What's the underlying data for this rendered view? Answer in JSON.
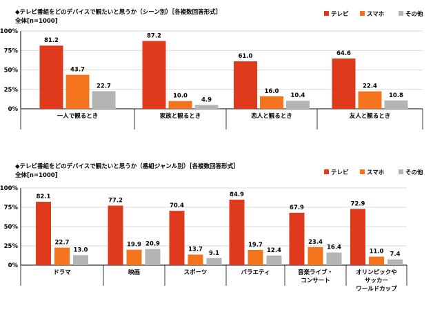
{
  "colors": {
    "tv": "#e03a1c",
    "smartphone": "#f4731c",
    "other": "#b4b4b4",
    "grid": "#d9d9d9",
    "axis": "#000000"
  },
  "chart_data": [
    {
      "type": "bar",
      "title": "◆テレビ番組をどのデバイスで観たいと思うか（シーン別）［各複数回答形式］",
      "subtitle": "全体[n=1000]",
      "categories": [
        [
          "一人で観るとき"
        ],
        [
          "家族と観るとき"
        ],
        [
          "恋人と観るとき"
        ],
        [
          "友人と観るとき"
        ]
      ],
      "series": [
        {
          "name": "テレビ",
          "color_key": "tv",
          "values": [
            81.2,
            87.2,
            61.0,
            64.6
          ],
          "labels": [
            "81.2",
            "87.2",
            "61.0",
            "64.6"
          ]
        },
        {
          "name": "スマホ",
          "color_key": "smartphone",
          "values": [
            43.7,
            10.0,
            16.0,
            22.4
          ],
          "labels": [
            "43.7",
            "10.0",
            "16.0",
            "22.4"
          ]
        },
        {
          "name": "その他",
          "color_key": "other",
          "values": [
            22.7,
            4.9,
            10.4,
            10.8
          ],
          "labels": [
            "22.7",
            "4.9",
            "10.4",
            "10.8"
          ]
        }
      ],
      "ylim": [
        0,
        100
      ],
      "yticks": [
        "0%",
        "25%",
        "50%",
        "75%",
        "100%"
      ],
      "xlabel": "",
      "ylabel": "",
      "legend_position": "top-right"
    },
    {
      "type": "bar",
      "title": "◆テレビ番組をどのデバイスで観たいと思うか（番組ジャンル別）［各複数回答形式］",
      "subtitle": "全体[n=1000]",
      "categories": [
        [
          "ドラマ"
        ],
        [
          "映画"
        ],
        [
          "スポーツ"
        ],
        [
          "バラエティ"
        ],
        [
          "音楽ライブ・",
          "コンサート"
        ],
        [
          "オリンピックや",
          "サッカー",
          "ワールドカップ"
        ]
      ],
      "series": [
        {
          "name": "テレビ",
          "color_key": "tv",
          "values": [
            82.1,
            77.2,
            70.4,
            84.9,
            67.9,
            72.9
          ],
          "labels": [
            "82.1",
            "77.2",
            "70.4",
            "84.9",
            "67.9",
            "72.9"
          ]
        },
        {
          "name": "スマホ",
          "color_key": "smartphone",
          "values": [
            22.7,
            19.9,
            13.7,
            19.7,
            23.4,
            11.0
          ],
          "labels": [
            "22.7",
            "19.9",
            "13.7",
            "19.7",
            "23.4",
            "11.0"
          ]
        },
        {
          "name": "その他",
          "color_key": "other",
          "values": [
            13.0,
            20.9,
            9.1,
            12.4,
            16.4,
            7.4
          ],
          "labels": [
            "13.0",
            "20.9",
            "9.1",
            "12.4",
            "16.4",
            "7.4"
          ]
        }
      ],
      "ylim": [
        0,
        100
      ],
      "yticks": [
        "0%",
        "25%",
        "50%",
        "75%",
        "100%"
      ],
      "xlabel": "",
      "ylabel": "",
      "legend_position": "top-right"
    }
  ]
}
